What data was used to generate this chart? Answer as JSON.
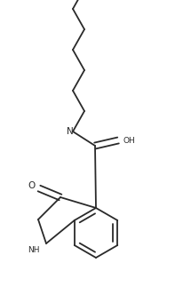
{
  "bg_color": "#ffffff",
  "line_color": "#2a2a2a",
  "line_width": 1.3,
  "font_size": 6.5,
  "fig_width": 2.07,
  "fig_height": 3.32,
  "dpi": 100,
  "xlim": [
    0,
    207
  ],
  "ylim": [
    0,
    332
  ]
}
